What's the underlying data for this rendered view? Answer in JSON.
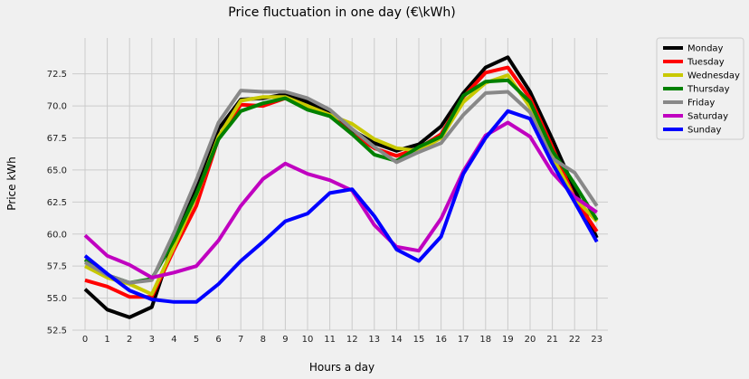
{
  "chart_data": {
    "type": "line",
    "title": "Price fluctuation in one day (€\\kWh)",
    "xlabel": "Hours a day",
    "ylabel": "Price kWh",
    "x": [
      0,
      1,
      2,
      3,
      4,
      5,
      6,
      7,
      8,
      9,
      10,
      11,
      12,
      13,
      14,
      15,
      16,
      17,
      18,
      19,
      20,
      21,
      22,
      23
    ],
    "xticks": [
      "0",
      "1",
      "2",
      "3",
      "4",
      "5",
      "6",
      "7",
      "8",
      "9",
      "10",
      "11",
      "12",
      "13",
      "14",
      "15",
      "16",
      "17",
      "18",
      "19",
      "20",
      "21",
      "22",
      "23"
    ],
    "ylim": [
      52.5,
      75.3
    ],
    "yticks": [
      "52.5",
      "55.0",
      "57.5",
      "60.0",
      "62.5",
      "65.0",
      "67.5",
      "70.0",
      "72.5"
    ],
    "grid": true,
    "legend_position": "outside-top-right",
    "series": [
      {
        "name": "Monday",
        "color": "#000000",
        "values": [
          55.7,
          54.1,
          53.5,
          54.3,
          59.5,
          63.5,
          68.2,
          70.5,
          70.6,
          70.9,
          70.3,
          69.5,
          68.1,
          67.1,
          66.5,
          67.0,
          68.4,
          71.0,
          73.0,
          73.8,
          71.1,
          67.4,
          63.5,
          59.7
        ]
      },
      {
        "name": "Tuesday",
        "color": "#ff0000",
        "values": [
          56.4,
          55.9,
          55.1,
          55.1,
          58.8,
          62.2,
          67.5,
          70.1,
          70.0,
          70.6,
          69.8,
          69.3,
          67.8,
          66.7,
          66.1,
          66.7,
          67.8,
          70.7,
          72.6,
          73.0,
          70.6,
          66.8,
          62.8,
          60.2
        ]
      },
      {
        "name": "Wednesday",
        "color": "#c8c800",
        "values": [
          57.5,
          56.6,
          56.1,
          55.3,
          59.0,
          63.0,
          67.6,
          70.4,
          70.7,
          70.7,
          70.0,
          69.3,
          68.6,
          67.4,
          66.7,
          66.5,
          67.5,
          70.3,
          71.8,
          72.4,
          69.9,
          66.0,
          62.8,
          61.0
        ]
      },
      {
        "name": "Thursday",
        "color": "#008000",
        "values": [
          58.0,
          56.8,
          56.2,
          56.5,
          59.5,
          63.1,
          67.4,
          69.6,
          70.2,
          70.6,
          69.7,
          69.2,
          67.8,
          66.2,
          65.7,
          66.8,
          67.6,
          70.8,
          71.9,
          72.0,
          70.3,
          66.5,
          63.9,
          61.1
        ]
      },
      {
        "name": "Friday",
        "color": "#888888",
        "values": [
          57.8,
          56.8,
          56.2,
          56.4,
          60.1,
          64.2,
          68.7,
          71.2,
          71.1,
          71.1,
          70.6,
          69.7,
          68.2,
          66.8,
          65.6,
          66.4,
          67.1,
          69.3,
          71.0,
          71.1,
          69.5,
          65.9,
          64.8,
          62.2
        ]
      },
      {
        "name": "Saturday",
        "color": "#c000c0",
        "values": [
          59.9,
          58.3,
          57.6,
          56.6,
          57.0,
          57.5,
          59.5,
          62.2,
          64.3,
          65.5,
          64.7,
          64.2,
          63.4,
          60.7,
          59.0,
          58.7,
          61.2,
          64.9,
          67.7,
          68.7,
          67.6,
          64.8,
          62.9,
          61.7
        ]
      },
      {
        "name": "Sunday",
        "color": "#0000ff",
        "values": [
          58.3,
          56.9,
          55.6,
          54.9,
          54.7,
          54.7,
          56.1,
          57.9,
          59.4,
          61.0,
          61.6,
          63.2,
          63.5,
          61.4,
          58.8,
          57.9,
          59.8,
          64.7,
          67.5,
          69.6,
          69.0,
          65.5,
          62.5,
          59.4
        ]
      }
    ]
  }
}
